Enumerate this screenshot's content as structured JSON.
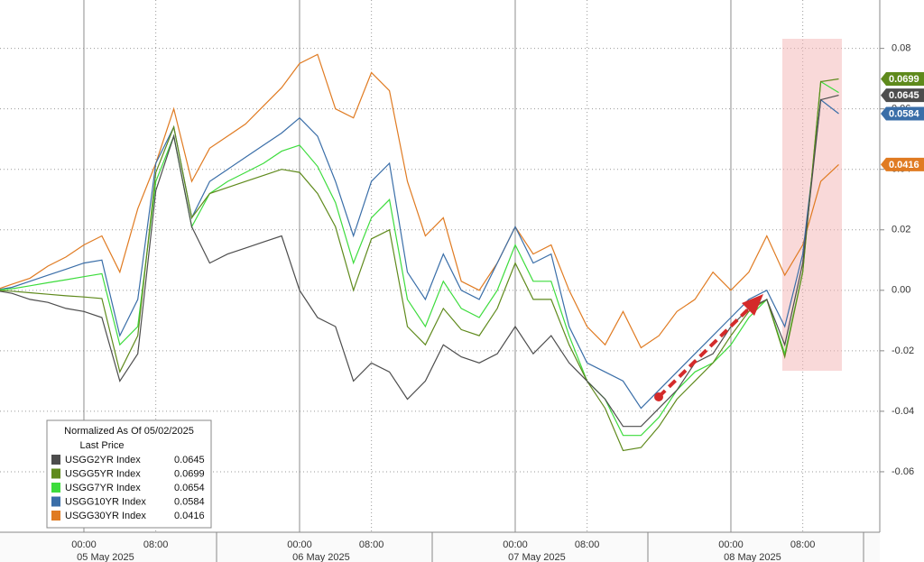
{
  "chart_data": {
    "type": "line",
    "legend_title": "Normalized As Of 05/02/2025",
    "legend_subtitle": "Last Price",
    "categories": [
      null,
      null,
      null,
      null,
      null,
      "00:00",
      null,
      null,
      null,
      "08:00",
      null,
      null,
      null,
      null,
      null,
      null,
      null,
      "00:00",
      null,
      null,
      null,
      "08:00",
      null,
      null,
      null,
      null,
      null,
      null,
      null,
      "00:00",
      null,
      null,
      null,
      "08:00",
      null,
      null,
      null,
      null,
      null,
      null,
      null,
      "00:00",
      null,
      null,
      null,
      "08:00",
      null,
      null
    ],
    "day_labels": [
      "05 May 2025",
      "06 May 2025",
      "07 May 2025",
      "08 May 2025"
    ],
    "series": [
      {
        "name": "USGG2YR Index",
        "color": "#4d4d4d",
        "end_label": true,
        "values": [
          0,
          -0.001,
          -0.003,
          -0.004,
          -0.006,
          -0.007,
          -0.009,
          -0.03,
          -0.021,
          0.033,
          0.051,
          0.021,
          0.009,
          0.012,
          0.014,
          0.016,
          0.018,
          0,
          -0.009,
          -0.012,
          -0.03,
          -0.024,
          -0.027,
          -0.036,
          -0.03,
          -0.018,
          -0.022,
          -0.024,
          -0.021,
          -0.012,
          -0.021,
          -0.015,
          -0.024,
          -0.03,
          -0.036,
          -0.045,
          -0.045,
          -0.039,
          -0.033,
          -0.024,
          -0.021,
          -0.012,
          -0.006,
          -0.003,
          -0.018,
          0.009,
          0.063,
          0.0645
        ]
      },
      {
        "name": "USGG5YR Index",
        "color": "#5f8a1c",
        "end_label": true,
        "values": [
          0,
          -0.0003,
          -0.0008,
          -0.0013,
          -0.0018,
          -0.0022,
          -0.0027,
          -0.027,
          -0.015,
          0.039,
          0.054,
          0.024,
          0.032,
          0.034,
          0.036,
          0.038,
          0.04,
          0.039,
          0.032,
          0.021,
          0,
          0.017,
          0.02,
          -0.012,
          -0.018,
          -0.006,
          -0.013,
          -0.015,
          -0.006,
          0.009,
          -0.003,
          -0.003,
          -0.018,
          -0.03,
          -0.039,
          -0.053,
          -0.052,
          -0.045,
          -0.036,
          -0.03,
          -0.024,
          -0.015,
          -0.007,
          -0.003,
          -0.022,
          0.006,
          0.069,
          0.0699
        ]
      },
      {
        "name": "USGG7YR Index",
        "color": "#3ddc3d",
        "end_label": false,
        "values": [
          0,
          0.0005,
          0.0015,
          0.0025,
          0.0035,
          0.0045,
          0.0055,
          -0.018,
          -0.012,
          0.036,
          0.051,
          0.021,
          0.032,
          0.036,
          0.039,
          0.042,
          0.046,
          0.048,
          0.041,
          0.029,
          0.009,
          0.024,
          0.03,
          -0.003,
          -0.012,
          0.003,
          -0.006,
          -0.009,
          0,
          0.015,
          0.003,
          0.003,
          -0.015,
          -0.03,
          -0.036,
          -0.048,
          -0.048,
          -0.042,
          -0.033,
          -0.027,
          -0.024,
          -0.018,
          -0.009,
          -0.003,
          -0.021,
          0.006,
          0.069,
          0.0654
        ]
      },
      {
        "name": "USGG10YR Index",
        "color": "#3a6ea8",
        "end_label": true,
        "values": [
          0,
          0.001,
          0.003,
          0.005,
          0.007,
          0.009,
          0.01,
          -0.015,
          -0.003,
          0.042,
          0.054,
          0.024,
          0.036,
          0.04,
          0.044,
          0.048,
          0.052,
          0.057,
          0.051,
          0.036,
          0.018,
          0.036,
          0.042,
          0.006,
          -0.003,
          0.012,
          0,
          -0.003,
          0.009,
          0.021,
          0.009,
          0.012,
          -0.012,
          -0.024,
          -0.027,
          -0.03,
          -0.039,
          -0.033,
          -0.027,
          -0.021,
          -0.015,
          -0.009,
          -0.003,
          0,
          -0.012,
          0.012,
          0.063,
          0.0584
        ]
      },
      {
        "name": "USGG30YR Index",
        "color": "#e07b22",
        "end_label": true,
        "values": [
          0,
          0.002,
          0.004,
          0.008,
          0.011,
          0.015,
          0.018,
          0.006,
          0.027,
          0.042,
          0.06,
          0.036,
          0.047,
          0.051,
          0.055,
          0.061,
          0.067,
          0.075,
          0.078,
          0.06,
          0.057,
          0.072,
          0.066,
          0.036,
          0.018,
          0.024,
          0.003,
          0,
          0.009,
          0.021,
          0.012,
          0.015,
          0,
          -0.012,
          -0.018,
          -0.007,
          -0.019,
          -0.015,
          -0.007,
          -0.003,
          0.006,
          0,
          0.006,
          0.018,
          0.005,
          0.015,
          0.036,
          0.0416
        ]
      }
    ],
    "ylim": [
      -0.08,
      0.096
    ],
    "yticks": [
      -0.06,
      -0.04,
      -0.02,
      {
        "value": 0,
        "label": "0.00"
      },
      0.02,
      0.04,
      0.06,
      0.08
    ],
    "grid": true
  }
}
